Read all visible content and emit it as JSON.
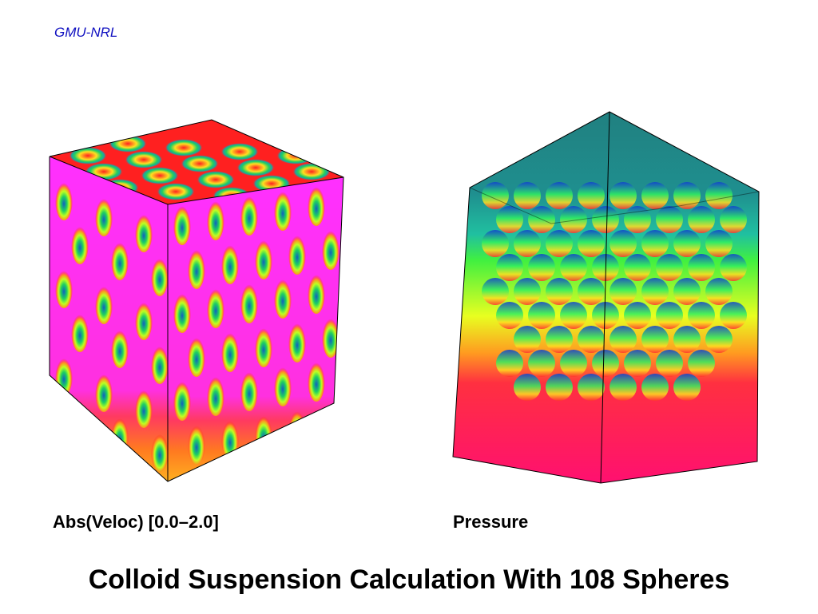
{
  "header": {
    "title": "GMU-NRL"
  },
  "panels": [
    {
      "label": "Abs(Veloc) [0.0–2.0]"
    },
    {
      "label": "Pressure"
    }
  ],
  "caption": "Colloid Suspension Calculation With 108 Spheres"
}
